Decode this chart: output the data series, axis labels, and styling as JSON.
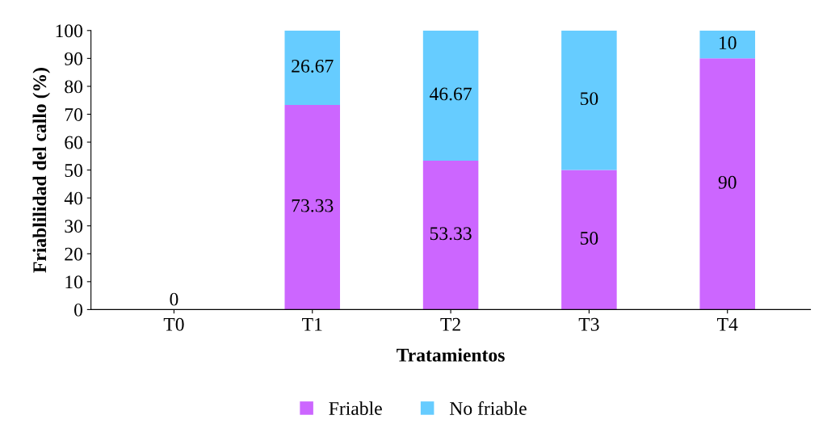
{
  "chart_data": {
    "type": "bar",
    "stacked": true,
    "xlabel": "Tratamientos",
    "ylabel": "Friablilidad del callo (%)",
    "categories": [
      "T0",
      "T1",
      "T2",
      "T3",
      "T4"
    ],
    "series": [
      {
        "name": "Friable",
        "color": "#cc66ff",
        "values": [
          0,
          73.33,
          53.33,
          50,
          90
        ],
        "value_labels": [
          null,
          "73.33",
          "53.33",
          "50",
          "90"
        ]
      },
      {
        "name": "No friable",
        "color": "#66ccff",
        "values": [
          0,
          26.67,
          46.67,
          50,
          10
        ],
        "value_labels": [
          "0",
          "26.67",
          "46.67",
          "50",
          "10"
        ]
      }
    ],
    "ylim": [
      0,
      100
    ],
    "yticks": [
      0,
      10,
      20,
      30,
      40,
      50,
      60,
      70,
      80,
      90,
      100
    ],
    "grid": false,
    "legend": "bottom"
  }
}
